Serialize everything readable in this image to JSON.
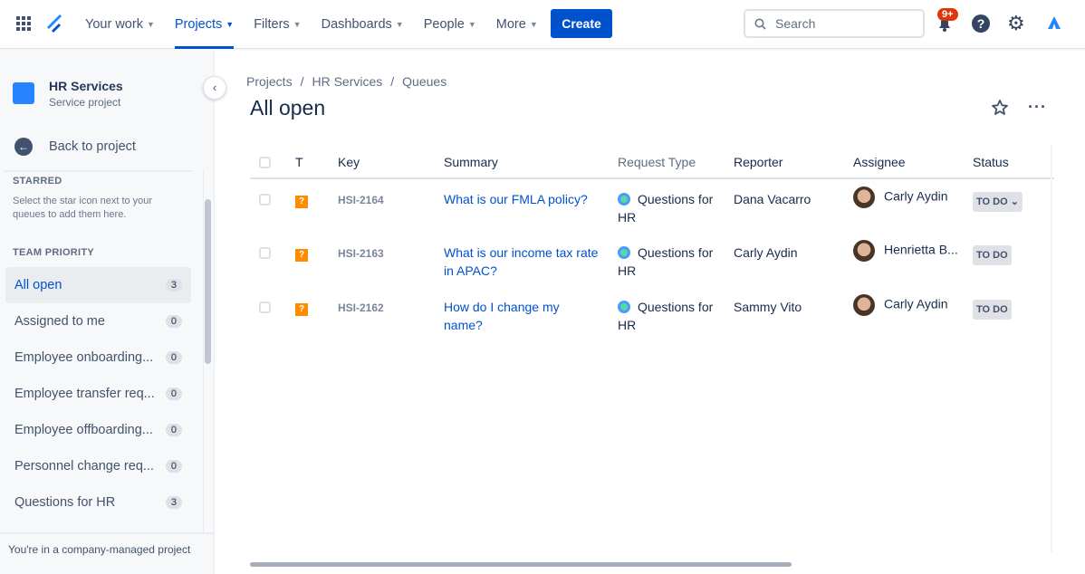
{
  "topnav": {
    "items": [
      {
        "label": "Your work",
        "active": false
      },
      {
        "label": "Projects",
        "active": true
      },
      {
        "label": "Filters",
        "active": false
      },
      {
        "label": "Dashboards",
        "active": false
      },
      {
        "label": "People",
        "active": false
      },
      {
        "label": "More",
        "active": false
      }
    ],
    "create_label": "Create",
    "search_placeholder": "Search",
    "notifications_badge": "9+",
    "help_label": "?"
  },
  "sidebar": {
    "project_name": "HR Services",
    "project_type": "Service project",
    "back_label": "Back to project",
    "starred_heading": "STARRED",
    "starred_hint": "Select the star icon next to your queues to add them here.",
    "team_heading": "TEAM PRIORITY",
    "queues": [
      {
        "label": "All open",
        "count": "3"
      },
      {
        "label": "Assigned to me",
        "count": "0"
      },
      {
        "label": "Employee onboarding...",
        "count": "0"
      },
      {
        "label": "Employee transfer req...",
        "count": "0"
      },
      {
        "label": "Employee offboarding...",
        "count": "0"
      },
      {
        "label": "Personnel change req...",
        "count": "0"
      },
      {
        "label": "Questions for HR",
        "count": "3"
      }
    ],
    "footer": "You're in a company-managed project"
  },
  "breadcrumbs": [
    "Projects",
    "HR Services",
    "Queues"
  ],
  "page_title": "All open",
  "table": {
    "headers": [
      "T",
      "Key",
      "Summary",
      "Request Type",
      "Reporter",
      "Assignee",
      "Status"
    ],
    "rows": [
      {
        "key": "HSI-2164",
        "summary": "What is our FMLA policy?",
        "request_type": "Questions for HR",
        "reporter": "Dana Vacarro",
        "assignee": "Carly Aydin",
        "status": "TO DO"
      },
      {
        "key": "HSI-2163",
        "summary": "What is our income tax rate in APAC?",
        "request_type": "Questions for HR",
        "reporter": "Carly Aydin",
        "assignee": "Henrietta B...",
        "status": "TO DO"
      },
      {
        "key": "HSI-2162",
        "summary": "How do I change my name?",
        "request_type": "Questions for HR",
        "reporter": "Sammy Vito",
        "assignee": "Carly Aydin",
        "status": "TO DO"
      }
    ]
  },
  "colors": {
    "accent": "#0052cc",
    "issue_type": "#ff8b00",
    "badge": "#de350b"
  }
}
